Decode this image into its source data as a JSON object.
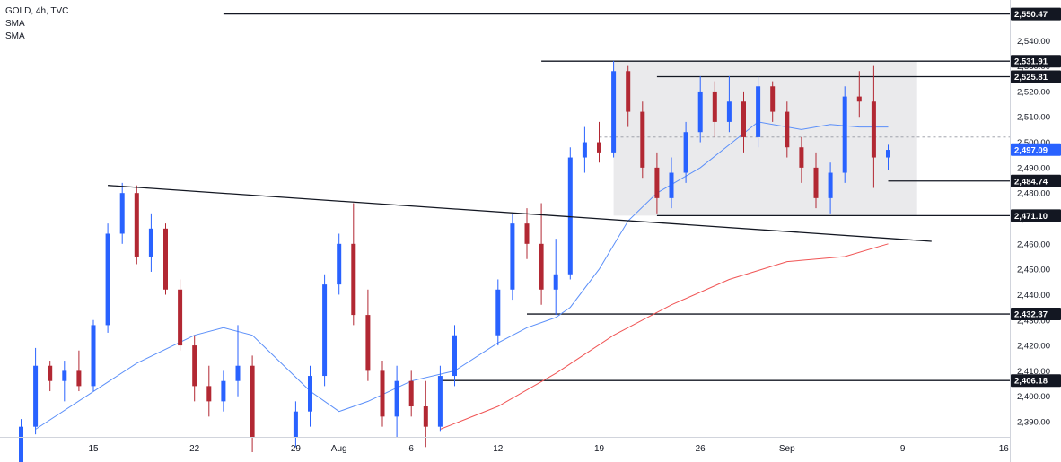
{
  "legend": {
    "symbol": "GOLD, 4h, TVC",
    "indicator_1": "SMA",
    "indicator_2": "SMA"
  },
  "colors": {
    "up": "#2962ff",
    "down": "#b22833",
    "sma_fast": "#5b8ff9",
    "sma_slow": "#f05454",
    "box_fill": "#e3e3e5",
    "line": "#131722",
    "price_badge": "#2962ff"
  },
  "chart_data": {
    "type": "candlestick",
    "symbol": "GOLD",
    "timeframe": "4h",
    "source": "TVC",
    "x_labels": [
      "15",
      "22",
      "29",
      "Aug",
      "6",
      "12",
      "19",
      "26",
      "Sep",
      "9",
      "16"
    ],
    "y_range": [
      2384,
      2556
    ],
    "y_ticks": [
      2390,
      2400,
      2410,
      2420,
      2430,
      2440,
      2450,
      2460,
      2470,
      2480,
      2490,
      2500,
      2510,
      2520,
      2530,
      2540
    ],
    "y_tick_labels": [
      "2,390.00",
      "2,400.00",
      "2,410.00",
      "2,420.00",
      "2,430.00",
      "2,440.00",
      "2,450.00",
      "2,460.00",
      "2,470.00",
      "2,480.00",
      "2,490.00",
      "2,500.00",
      "2,510.00",
      "2,520.00",
      "2,530.00",
      "2,540.00"
    ],
    "price_levels": [
      {
        "value": 2550.47,
        "label": "2,550.47"
      },
      {
        "value": 2531.91,
        "label": "2,531.91"
      },
      {
        "value": 2525.81,
        "label": "2,525.81"
      },
      {
        "value": 2484.74,
        "label": "2,484.74"
      },
      {
        "value": 2471.1,
        "label": "2,471.10"
      },
      {
        "value": 2432.37,
        "label": "2,432.37"
      },
      {
        "value": 2406.18,
        "label": "2,406.18"
      }
    ],
    "last_price": {
      "value": 2497.09,
      "label": "2,497.09"
    },
    "range_box": {
      "from": "Aug 20",
      "to": "Sep 10",
      "high": 2531.91,
      "low": 2471.1
    },
    "trendline": {
      "from": [
        "Jul 16",
        2483
      ],
      "to": [
        "Sep 11",
        2461
      ]
    },
    "sma_fast": [
      [
        "Jul 11",
        2387
      ],
      [
        "Jul 18",
        2413
      ],
      [
        "Jul 22",
        2424
      ],
      [
        "Jul 24",
        2427
      ],
      [
        "Jul 26",
        2424
      ],
      [
        "Jul 30",
        2402
      ],
      [
        "Aug 1",
        2394
      ],
      [
        "Aug 3",
        2398
      ],
      [
        "Aug 6",
        2406
      ],
      [
        "Aug 9",
        2410
      ],
      [
        "Aug 12",
        2421
      ],
      [
        "Aug 14",
        2427
      ],
      [
        "Aug 16",
        2431
      ],
      [
        "Aug 17",
        2435
      ],
      [
        "Aug 19",
        2450
      ],
      [
        "Aug 21",
        2469
      ],
      [
        "Aug 23",
        2480
      ],
      [
        "Aug 26",
        2490
      ],
      [
        "Aug 28",
        2499
      ],
      [
        "Aug 30",
        2508
      ],
      [
        "Sep 2",
        2505
      ],
      [
        "Sep 4",
        2507
      ],
      [
        "Sep 6",
        2506
      ],
      [
        "Sep 8",
        2506
      ]
    ],
    "sma_slow": [
      [
        "Aug 8",
        2387
      ],
      [
        "Aug 12",
        2396
      ],
      [
        "Aug 16",
        2409
      ],
      [
        "Aug 20",
        2424
      ],
      [
        "Aug 24",
        2436
      ],
      [
        "Aug 28",
        2446
      ],
      [
        "Sep 1",
        2453
      ],
      [
        "Sep 5",
        2455
      ],
      [
        "Sep 8",
        2460
      ]
    ],
    "candles": [
      [
        "Jul 10",
        2372,
        2391,
        2369,
        2388
      ],
      [
        "Jul 11",
        2388,
        2419,
        2385,
        2412
      ],
      [
        "Jul 12",
        2412,
        2414,
        2402,
        2406
      ],
      [
        "Jul 13",
        2406,
        2414,
        2398,
        2410
      ],
      [
        "Jul 14",
        2410,
        2418,
        2402,
        2404
      ],
      [
        "Jul 15",
        2404,
        2430,
        2402,
        2428
      ],
      [
        "Jul 16",
        2428,
        2468,
        2425,
        2464
      ],
      [
        "Jul 17",
        2464,
        2484,
        2460,
        2480
      ],
      [
        "Jul 18",
        2480,
        2483,
        2452,
        2455
      ],
      [
        "Jul 19",
        2455,
        2472,
        2449,
        2466
      ],
      [
        "Jul 20",
        2466,
        2468,
        2440,
        2442
      ],
      [
        "Jul 21",
        2442,
        2446,
        2418,
        2420
      ],
      [
        "Jul 22",
        2420,
        2424,
        2398,
        2404
      ],
      [
        "Jul 23",
        2404,
        2412,
        2392,
        2398
      ],
      [
        "Jul 24",
        2398,
        2410,
        2394,
        2406
      ],
      [
        "Jul 25",
        2406,
        2428,
        2400,
        2412
      ],
      [
        "Jul 26",
        2412,
        2416,
        2378,
        2384
      ],
      [
        "Jul 29",
        2384,
        2398,
        2380,
        2394
      ],
      [
        "Jul 30",
        2394,
        2412,
        2388,
        2408
      ],
      [
        "Jul 31",
        2408,
        2448,
        2404,
        2444
      ],
      [
        "Aug 1",
        2444,
        2464,
        2440,
        2460
      ],
      [
        "Aug 2",
        2460,
        2476,
        2428,
        2432
      ],
      [
        "Aug 3",
        2432,
        2442,
        2406,
        2410
      ],
      [
        "Aug 4",
        2410,
        2414,
        2388,
        2392
      ],
      [
        "Aug 5",
        2392,
        2412,
        2384,
        2406
      ],
      [
        "Aug 6",
        2406,
        2410,
        2392,
        2396
      ],
      [
        "Aug 7",
        2396,
        2406,
        2380,
        2388
      ],
      [
        "Aug 8",
        2388,
        2412,
        2386,
        2408
      ],
      [
        "Aug 9",
        2408,
        2428,
        2404,
        2424
      ],
      [
        "Aug 12",
        2424,
        2446,
        2420,
        2442
      ],
      [
        "Aug 13",
        2442,
        2472,
        2438,
        2468
      ],
      [
        "Aug 14",
        2468,
        2474,
        2454,
        2460
      ],
      [
        "Aug 15",
        2460,
        2476,
        2436,
        2442
      ],
      [
        "Aug 16",
        2442,
        2462,
        2432,
        2448
      ],
      [
        "Aug 17",
        2448,
        2498,
        2446,
        2494
      ],
      [
        "Aug 18",
        2494,
        2506,
        2488,
        2500
      ],
      [
        "Aug 19",
        2500,
        2508,
        2492,
        2496
      ],
      [
        "Aug 20",
        2496,
        2532,
        2494,
        2528
      ],
      [
        "Aug 21",
        2528,
        2530,
        2506,
        2512
      ],
      [
        "Aug 22",
        2512,
        2516,
        2486,
        2490
      ],
      [
        "Aug 23",
        2490,
        2496,
        2472,
        2478
      ],
      [
        "Aug 24",
        2478,
        2494,
        2474,
        2488
      ],
      [
        "Aug 25",
        2488,
        2508,
        2484,
        2504
      ],
      [
        "Aug 26",
        2504,
        2526,
        2500,
        2520
      ],
      [
        "Aug 27",
        2520,
        2524,
        2502,
        2508
      ],
      [
        "Aug 28",
        2508,
        2526,
        2504,
        2516
      ],
      [
        "Aug 29",
        2516,
        2520,
        2496,
        2502
      ],
      [
        "Aug 30",
        2502,
        2526,
        2498,
        2522
      ],
      [
        "Aug 31",
        2522,
        2524,
        2508,
        2512
      ],
      [
        "Sep 1",
        2512,
        2516,
        2494,
        2498
      ],
      [
        "Sep 2",
        2498,
        2502,
        2484,
        2490
      ],
      [
        "Sep 3",
        2490,
        2496,
        2474,
        2478
      ],
      [
        "Sep 4",
        2478,
        2492,
        2472,
        2488
      ],
      [
        "Sep 5",
        2488,
        2522,
        2484,
        2518
      ],
      [
        "Sep 6",
        2518,
        2528,
        2510,
        2516
      ],
      [
        "Sep 7",
        2516,
        2530,
        2482,
        2494
      ],
      [
        "Sep 8",
        2494,
        2499,
        2489,
        2497
      ]
    ]
  }
}
